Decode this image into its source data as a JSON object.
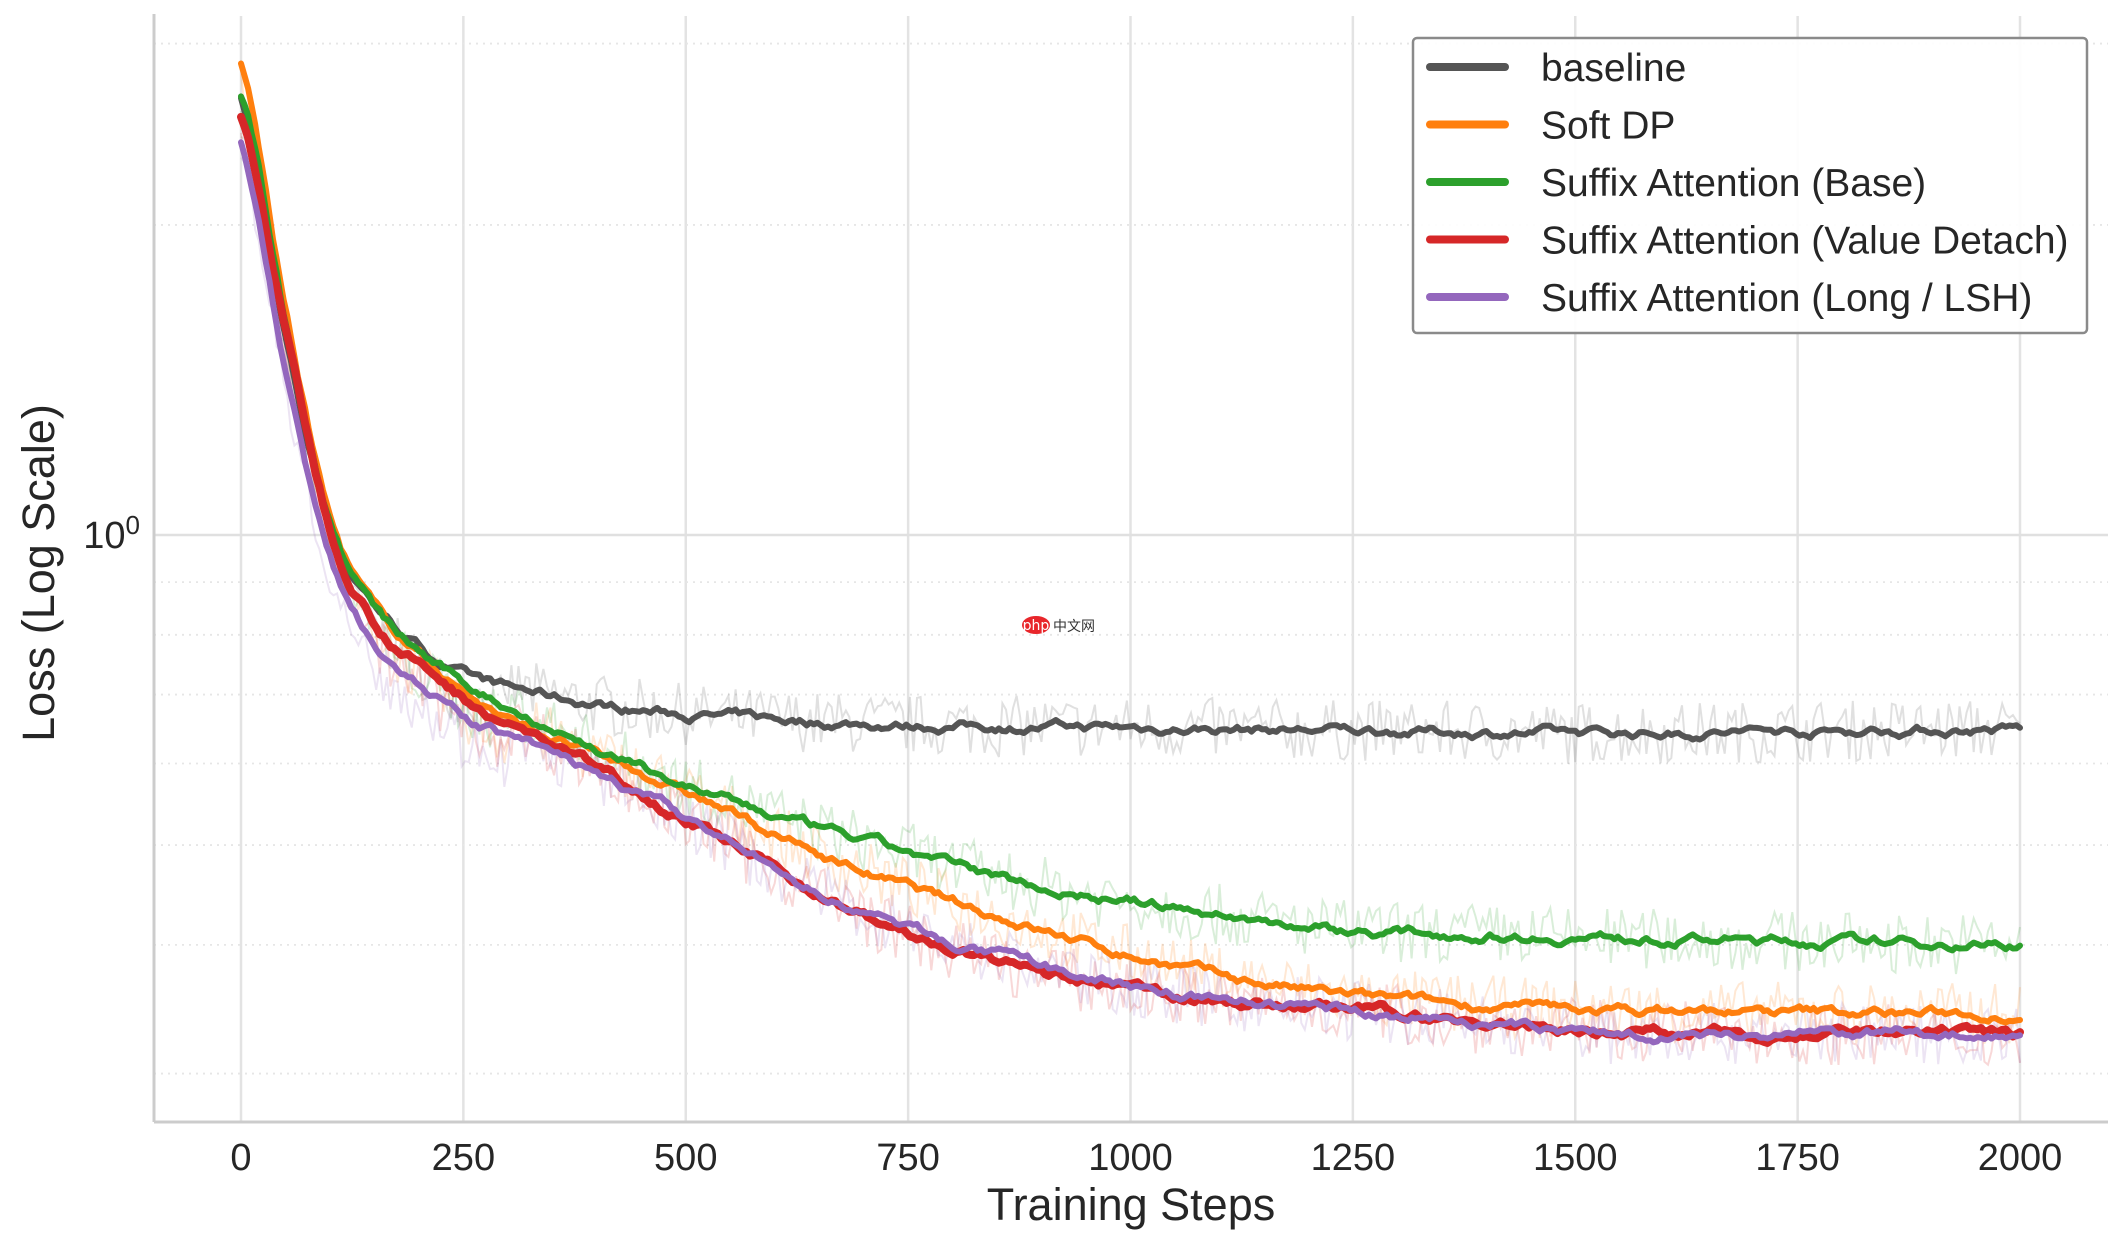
{
  "chart_data": {
    "type": "line",
    "title": "",
    "xlabel": "Training Steps",
    "ylabel": "Loss (Log Scale)",
    "yscale": "log",
    "xlim": [
      -100,
      2100
    ],
    "ylim": [
      0.27,
      3.2
    ],
    "xticks": [
      0,
      250,
      500,
      750,
      1000,
      1250,
      1500,
      1750,
      2000
    ],
    "xtick_labels": [
      "0",
      "250",
      "500",
      "750",
      "1000",
      "1250",
      "1500",
      "1750",
      "2000"
    ],
    "yticks_major": [
      1
    ],
    "ytick_labels": [
      {
        "base": "10",
        "exp": "0"
      }
    ],
    "yticks_minor": [
      0.3,
      0.4,
      0.5,
      0.6,
      0.7,
      0.8,
      0.9,
      2,
      3
    ],
    "grid": true,
    "legend_position": "top-right",
    "x": [
      0,
      50,
      100,
      150,
      200,
      250,
      300,
      400,
      500,
      625,
      750,
      875,
      1000,
      1125,
      1250,
      1375,
      1500,
      1750,
      2000
    ],
    "series": [
      {
        "name": "baseline",
        "color": "#555555",
        "values": [
          2.64,
          1.55,
          1.02,
          0.86,
          0.78,
          0.732,
          0.71,
          0.685,
          0.67,
          0.66,
          0.654,
          0.652,
          0.65,
          0.648,
          0.646,
          0.644,
          0.642,
          0.645,
          0.648
        ]
      },
      {
        "name": "Soft DP",
        "color": "#ff7f0e",
        "values": [
          2.86,
          1.65,
          1.04,
          0.85,
          0.77,
          0.706,
          0.66,
          0.61,
          0.562,
          0.5,
          0.455,
          0.42,
          0.391,
          0.37,
          0.357,
          0.35,
          0.346,
          0.344,
          0.343
        ]
      },
      {
        "name": "Suffix Attention (Base)",
        "color": "#2ca02c",
        "values": [
          2.68,
          1.62,
          1.04,
          0.85,
          0.77,
          0.717,
          0.68,
          0.62,
          0.571,
          0.525,
          0.491,
          0.46,
          0.441,
          0.425,
          0.413,
          0.41,
          0.407,
          0.403,
          0.401
        ]
      },
      {
        "name": "Suffix Attention (Value Detach)",
        "color": "#d62728",
        "values": [
          2.54,
          1.58,
          1.02,
          0.83,
          0.75,
          0.695,
          0.655,
          0.595,
          0.53,
          0.46,
          0.409,
          0.38,
          0.362,
          0.352,
          0.346,
          0.337,
          0.331,
          0.328,
          0.326
        ]
      },
      {
        "name": "Suffix Attention (Long / LSH)",
        "color": "#9467bd",
        "values": [
          2.42,
          1.45,
          0.95,
          0.79,
          0.72,
          0.664,
          0.635,
          0.585,
          0.53,
          0.46,
          0.415,
          0.385,
          0.365,
          0.352,
          0.346,
          0.338,
          0.329,
          0.328,
          0.328
        ]
      }
    ]
  },
  "watermark": {
    "logo": "php",
    "text": "中文网"
  }
}
